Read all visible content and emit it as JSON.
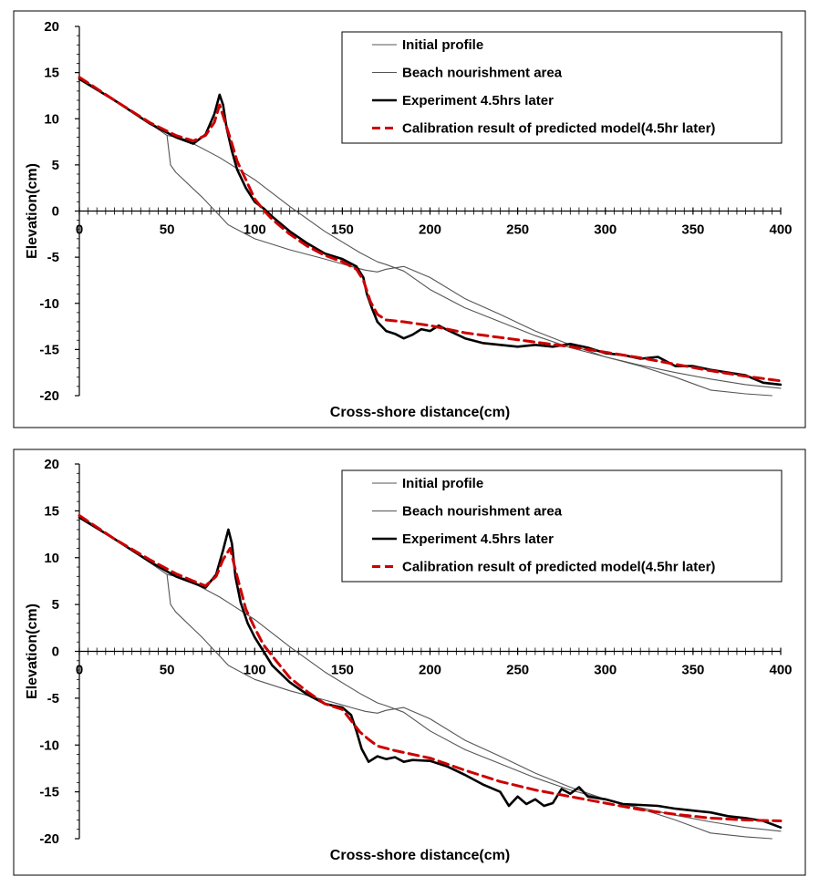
{
  "chart_data": [
    {
      "type": "line",
      "xlabel": "Cross-shore distance(cm)",
      "ylabel": "Elevation(cm)",
      "xlim": [
        0,
        400
      ],
      "ylim": [
        -20,
        20
      ],
      "xticks": [
        "0",
        "50",
        "100",
        "150",
        "200",
        "250",
        "300",
        "350",
        "400"
      ],
      "yticks": [
        "20",
        "15",
        "10",
        "5",
        "0",
        "-5",
        "-10",
        "-15",
        "-20"
      ],
      "legend_position": "top-right",
      "series": [
        {
          "name": "Initial profile",
          "color": "#555555",
          "style": "solid-thin",
          "x": [
            0,
            20,
            40,
            50,
            52,
            55,
            70,
            85,
            100,
            120,
            140,
            155,
            163,
            170,
            175,
            185,
            200,
            220,
            240,
            260,
            280,
            300,
            320,
            340,
            360,
            380,
            395
          ],
          "y": [
            14.5,
            12,
            9.5,
            8.2,
            5,
            4.2,
            1.5,
            -1.5,
            -3,
            -4.2,
            -5.2,
            -6,
            -6.4,
            -6.6,
            -6.3,
            -6,
            -7.2,
            -9.5,
            -11.2,
            -13,
            -14.5,
            -15.8,
            -16.8,
            -18,
            -19.4,
            -19.8,
            -20
          ]
        },
        {
          "name": "Beach nourishment area",
          "color": "#555555",
          "style": "solid-thin",
          "x": [
            50,
            60,
            80,
            100,
            120,
            140,
            160,
            170,
            175,
            185,
            200,
            220,
            240,
            260,
            280,
            300,
            320,
            340,
            360,
            380,
            400
          ],
          "y": [
            8.2,
            7.8,
            5.8,
            3.4,
            0.5,
            -2.2,
            -4.5,
            -5.5,
            -5.8,
            -6.5,
            -8.5,
            -10.5,
            -12,
            -13.5,
            -14.8,
            -15.8,
            -16.7,
            -17.5,
            -18.2,
            -18.8,
            -19.2
          ]
        },
        {
          "name": "Experiment 4.5hrs later",
          "color": "#000000",
          "style": "solid-thick",
          "x": [
            0,
            20,
            40,
            55,
            65,
            72,
            77,
            80,
            82,
            84,
            87,
            90,
            95,
            100,
            105,
            110,
            120,
            130,
            140,
            150,
            158,
            162,
            164,
            167,
            170,
            175,
            180,
            185,
            190,
            195,
            200,
            205,
            210,
            220,
            230,
            240,
            250,
            260,
            270,
            280,
            290,
            300,
            310,
            320,
            330,
            340,
            350,
            360,
            370,
            380,
            390,
            400
          ],
          "y": [
            14.3,
            12,
            9.5,
            8,
            7.3,
            8.3,
            10.5,
            12.6,
            11.5,
            9,
            6.5,
            4.5,
            2.5,
            1,
            0.3,
            -0.6,
            -2.2,
            -3.5,
            -4.6,
            -5.2,
            -6,
            -7.2,
            -9,
            -10.6,
            -12,
            -13,
            -13.3,
            -13.8,
            -13.4,
            -12.8,
            -13,
            -12.4,
            -12.9,
            -13.8,
            -14.3,
            -14.5,
            -14.7,
            -14.5,
            -14.7,
            -14.4,
            -14.8,
            -15.4,
            -15.6,
            -16,
            -15.8,
            -16.8,
            -16.8,
            -17.2,
            -17.5,
            -17.8,
            -18.6,
            -18.8
          ]
        },
        {
          "name": "Calibration result of predicted model(4.5hr later)",
          "color": "#cc0000",
          "style": "dashed",
          "x": [
            0,
            20,
            40,
            55,
            65,
            72,
            77,
            80,
            83,
            87,
            90,
            95,
            100,
            105,
            110,
            120,
            130,
            140,
            150,
            158,
            162,
            166,
            170,
            175,
            185,
            200,
            220,
            240,
            260,
            280,
            300,
            320,
            340,
            360,
            380,
            400
          ],
          "y": [
            14.5,
            12,
            9.6,
            8.2,
            7.6,
            8.2,
            9.6,
            11.5,
            9.7,
            7.3,
            5.4,
            3.4,
            1.3,
            0.1,
            -0.9,
            -2.5,
            -3.8,
            -4.8,
            -5.5,
            -6.3,
            -7.5,
            -9.8,
            -11.2,
            -11.8,
            -12,
            -12.4,
            -13.2,
            -13.7,
            -14.2,
            -14.7,
            -15.3,
            -15.9,
            -16.6,
            -17.3,
            -17.9,
            -18.4
          ]
        }
      ]
    },
    {
      "type": "line",
      "xlabel": "Cross-shore distance(cm)",
      "ylabel": "Elevation(cm)",
      "xlim": [
        0,
        400
      ],
      "ylim": [
        -20,
        20
      ],
      "xticks": [
        "0",
        "50",
        "100",
        "150",
        "200",
        "250",
        "300",
        "350",
        "400"
      ],
      "yticks": [
        "20",
        "15",
        "10",
        "5",
        "0",
        "-5",
        "-10",
        "-15",
        "-20"
      ],
      "legend_position": "top-right",
      "series": [
        {
          "name": "Initial profile",
          "color": "#555555",
          "style": "solid-thin",
          "x": [
            0,
            20,
            40,
            50,
            52,
            55,
            70,
            85,
            100,
            120,
            140,
            155,
            163,
            170,
            175,
            185,
            200,
            220,
            240,
            260,
            280,
            300,
            320,
            340,
            360,
            380,
            395
          ],
          "y": [
            14.5,
            12,
            9.5,
            8.2,
            5,
            4.2,
            1.5,
            -1.5,
            -3,
            -4.2,
            -5.2,
            -6,
            -6.4,
            -6.6,
            -6.3,
            -6,
            -7.2,
            -9.5,
            -11.2,
            -13,
            -14.5,
            -15.8,
            -16.8,
            -18,
            -19.4,
            -19.8,
            -20
          ]
        },
        {
          "name": "Beach nourishment area",
          "color": "#555555",
          "style": "solid-thin",
          "x": [
            50,
            60,
            80,
            100,
            120,
            140,
            160,
            170,
            175,
            185,
            200,
            220,
            240,
            260,
            280,
            300,
            320,
            340,
            360,
            380,
            400
          ],
          "y": [
            8.2,
            7.8,
            5.8,
            3.4,
            0.5,
            -2.2,
            -4.5,
            -5.5,
            -5.8,
            -6.5,
            -8.5,
            -10.5,
            -12,
            -13.5,
            -14.8,
            -15.8,
            -16.7,
            -17.5,
            -18.2,
            -18.8,
            -19.2
          ]
        },
        {
          "name": "Experiment 4.5hrs later",
          "color": "#000000",
          "style": "solid-thick",
          "x": [
            0,
            20,
            40,
            55,
            65,
            72,
            78,
            82,
            85,
            87,
            89,
            92,
            96,
            100,
            105,
            110,
            120,
            130,
            140,
            150,
            155,
            158,
            161,
            165,
            170,
            175,
            180,
            185,
            190,
            200,
            210,
            220,
            230,
            240,
            245,
            250,
            255,
            260,
            265,
            270,
            275,
            280,
            285,
            290,
            300,
            310,
            320,
            330,
            340,
            350,
            360,
            370,
            380,
            390,
            400
          ],
          "y": [
            14.3,
            12,
            9.6,
            8,
            7.3,
            6.8,
            8.2,
            10.8,
            13,
            11.5,
            8,
            5.2,
            3,
            1.5,
            0,
            -1.5,
            -3.3,
            -4.6,
            -5.6,
            -6,
            -6.8,
            -8.5,
            -10.4,
            -11.8,
            -11.2,
            -11.5,
            -11.3,
            -11.8,
            -11.6,
            -11.7,
            -12.3,
            -13.2,
            -14.2,
            -15,
            -16.5,
            -15.5,
            -16.3,
            -15.8,
            -16.5,
            -16.2,
            -14.7,
            -15.2,
            -14.5,
            -15.5,
            -15.8,
            -16.3,
            -16.4,
            -16.5,
            -16.8,
            -17,
            -17.2,
            -17.6,
            -17.8,
            -18.1,
            -18.8
          ]
        },
        {
          "name": "Calibration result of predicted model(4.5hr later)",
          "color": "#cc0000",
          "style": "dashed",
          "x": [
            0,
            20,
            40,
            55,
            65,
            72,
            78,
            82,
            86,
            90,
            95,
            100,
            105,
            110,
            120,
            130,
            140,
            150,
            155,
            160,
            165,
            170,
            180,
            200,
            220,
            240,
            260,
            280,
            300,
            320,
            340,
            360,
            380,
            400
          ],
          "y": [
            14.5,
            12,
            9.8,
            8.3,
            7.5,
            7,
            8,
            9.8,
            11,
            8,
            4.5,
            2.5,
            0.7,
            -0.5,
            -2.8,
            -4.3,
            -5.6,
            -6.2,
            -7.4,
            -8.6,
            -9.4,
            -10.1,
            -10.6,
            -11.4,
            -12.7,
            -13.9,
            -14.8,
            -15.5,
            -16.2,
            -16.9,
            -17.4,
            -17.8,
            -18,
            -18.1
          ]
        }
      ]
    }
  ]
}
